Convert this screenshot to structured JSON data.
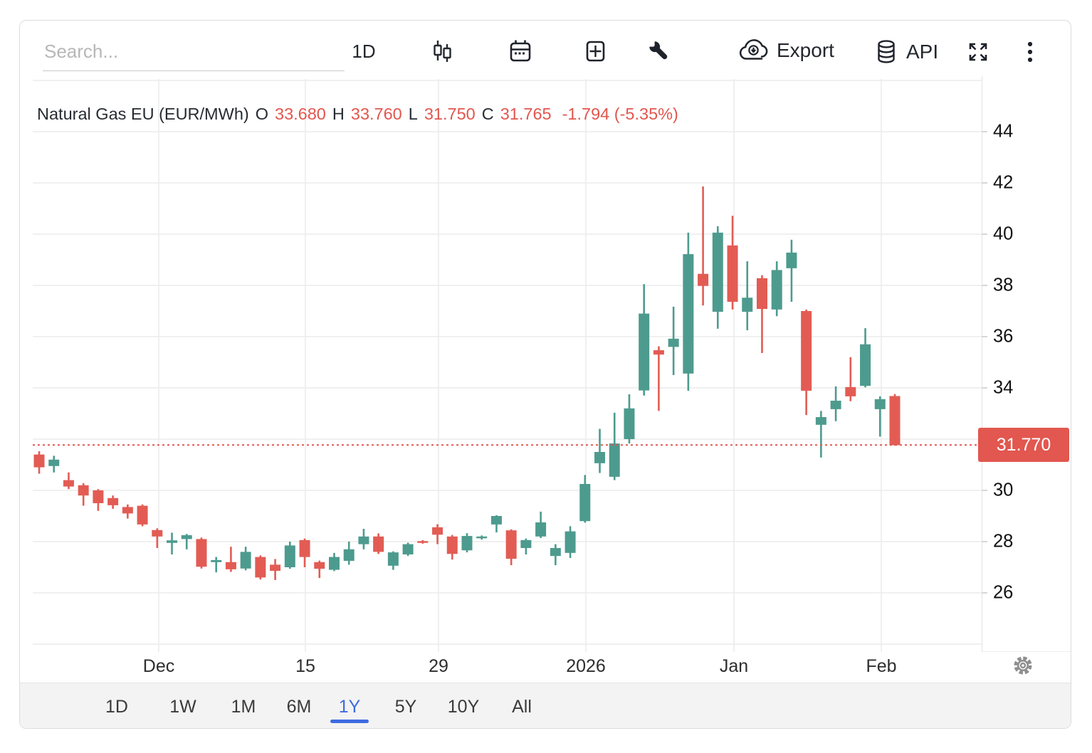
{
  "toolbar": {
    "search_placeholder": "Search...",
    "interval": "1D",
    "export_label": "Export",
    "api_label": "API",
    "icons": [
      "candlestick-chart-type",
      "calendar",
      "add-indicator",
      "tools-wrench",
      "export-cloud-download",
      "api-database",
      "fullscreen-expand",
      "more-kebab",
      "settings-gear"
    ]
  },
  "title": {
    "name": "Natural Gas EU (EUR/MWh)",
    "o_label": "O",
    "open": "33.680",
    "h_label": "H",
    "high": "33.760",
    "l_label": "L",
    "low": "31.750",
    "c_label": "C",
    "close": "31.765",
    "change": "-1.794 (-5.35%)"
  },
  "chart_data": {
    "type": "candlestick",
    "title": "Natural Gas EU (EUR/MWh)",
    "ohlc_readout": {
      "open": 33.68,
      "high": 33.76,
      "low": 31.75,
      "close": 31.765,
      "change": "-1.794 (-5.35%)"
    },
    "last_price": 31.77,
    "last_price_label": "31.770",
    "y_axis_tick_labels": [
      44,
      42,
      40,
      38,
      36,
      34,
      30,
      28,
      26
    ],
    "y_gridline_values": [
      24,
      26,
      28,
      30,
      32,
      34,
      36,
      38,
      40,
      42,
      44,
      46
    ],
    "x_axis_tick_labels": [
      "Dec",
      "15",
      "29",
      "2026",
      "Jan",
      "Feb"
    ],
    "y_range_visible": [
      24.5,
      46.5
    ],
    "grid": true,
    "legend_position": "none",
    "candles_ohlc": [
      [
        31.4,
        31.53,
        30.65,
        30.9
      ],
      [
        30.95,
        31.35,
        30.7,
        31.2
      ],
      [
        30.4,
        30.7,
        30.05,
        30.15
      ],
      [
        30.2,
        30.28,
        29.4,
        29.8
      ],
      [
        30.0,
        30.05,
        29.2,
        29.5
      ],
      [
        29.7,
        29.8,
        29.28,
        29.42
      ],
      [
        29.35,
        29.45,
        28.9,
        29.1
      ],
      [
        29.4,
        29.45,
        28.6,
        28.67
      ],
      [
        28.45,
        28.52,
        27.75,
        28.2
      ],
      [
        27.95,
        28.35,
        27.5,
        28.05
      ],
      [
        28.1,
        28.3,
        27.7,
        28.25
      ],
      [
        28.1,
        28.16,
        26.95,
        27.02
      ],
      [
        27.2,
        27.4,
        26.8,
        27.28
      ],
      [
        27.2,
        27.8,
        26.82,
        26.92
      ],
      [
        26.95,
        27.8,
        26.88,
        27.6
      ],
      [
        27.4,
        27.46,
        26.52,
        26.6
      ],
      [
        27.1,
        27.32,
        26.5,
        26.86
      ],
      [
        27.0,
        28.0,
        26.94,
        27.85
      ],
      [
        28.06,
        28.12,
        27.0,
        27.4
      ],
      [
        27.2,
        27.26,
        26.58,
        26.94
      ],
      [
        26.9,
        27.56,
        26.85,
        27.4
      ],
      [
        27.25,
        28.0,
        27.1,
        27.7
      ],
      [
        27.9,
        28.5,
        27.7,
        28.2
      ],
      [
        28.2,
        28.32,
        27.52,
        27.6
      ],
      [
        27.06,
        27.62,
        26.9,
        27.58
      ],
      [
        27.5,
        27.96,
        27.44,
        27.9
      ],
      [
        28.02,
        28.06,
        27.92,
        27.98
      ],
      [
        28.56,
        28.68,
        27.9,
        28.27
      ],
      [
        28.2,
        28.26,
        27.3,
        27.52
      ],
      [
        27.66,
        28.33,
        27.58,
        28.22
      ],
      [
        28.14,
        28.24,
        28.08,
        28.2
      ],
      [
        28.67,
        29.03,
        28.36,
        29.0
      ],
      [
        28.44,
        28.48,
        27.08,
        27.33
      ],
      [
        27.75,
        28.12,
        27.5,
        28.06
      ],
      [
        28.2,
        29.17,
        28.14,
        28.75
      ],
      [
        27.44,
        27.9,
        27.08,
        27.75
      ],
      [
        27.56,
        28.6,
        27.36,
        28.4
      ],
      [
        28.8,
        30.6,
        28.74,
        30.25
      ],
      [
        31.06,
        32.4,
        30.68,
        31.5
      ],
      [
        30.53,
        33.03,
        30.4,
        31.83
      ],
      [
        32.0,
        33.75,
        31.83,
        33.2
      ],
      [
        33.9,
        38.05,
        33.7,
        36.9
      ],
      [
        35.47,
        35.62,
        33.1,
        35.3
      ],
      [
        35.6,
        37.17,
        34.5,
        35.92
      ],
      [
        34.56,
        40.06,
        33.89,
        39.22
      ],
      [
        38.45,
        41.86,
        37.22,
        37.98
      ],
      [
        36.97,
        40.31,
        36.31,
        40.06
      ],
      [
        39.56,
        40.72,
        37.06,
        37.36
      ],
      [
        36.97,
        38.94,
        36.25,
        37.52
      ],
      [
        38.28,
        38.4,
        35.36,
        37.08
      ],
      [
        37.06,
        38.94,
        36.8,
        38.6
      ],
      [
        38.67,
        39.78,
        37.36,
        39.28
      ],
      [
        37.0,
        37.06,
        32.94,
        33.89
      ],
      [
        32.56,
        33.1,
        31.28,
        32.86
      ],
      [
        33.17,
        34.06,
        32.7,
        33.5
      ],
      [
        34.03,
        35.2,
        33.48,
        33.67
      ],
      [
        34.08,
        36.33,
        34.02,
        35.7
      ],
      [
        33.17,
        33.67,
        32.1,
        33.56
      ],
      [
        33.68,
        33.76,
        31.75,
        31.765
      ]
    ]
  },
  "range_tabs": {
    "items": [
      "1D",
      "1W",
      "1M",
      "6M",
      "1Y",
      "5Y",
      "10Y",
      "All"
    ],
    "active": "1Y"
  },
  "colors": {
    "up": "#4d9b8e",
    "down": "#e25c54",
    "red_text": "#e2564e",
    "price_tag_bg": "#e2574f",
    "active_tab": "#3d6be0",
    "gridline": "#ececec"
  }
}
